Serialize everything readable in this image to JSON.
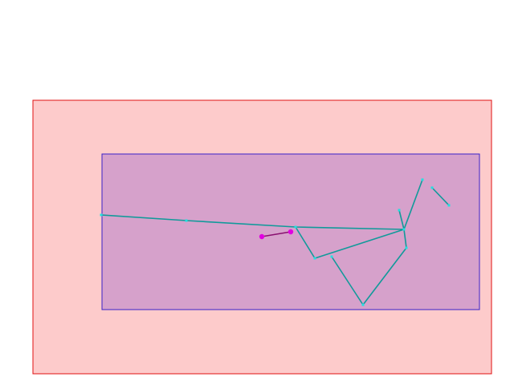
{
  "colors": {
    "background": "#ffffff",
    "outer_fill": "#fdcbcb",
    "outer_stroke": "#e01010",
    "inner_fill": "#d6a1cb",
    "inner_stroke": "#3a22c8",
    "line_color": "#119a9a",
    "vertex_color": "#22e0e0",
    "selected_line_color": "#8a1070",
    "selected_vertex_color": "#e000e0"
  },
  "icons": {
    "vertex": "square-handle-icon",
    "selected_vertex": "magenta-dot-icon"
  }
}
